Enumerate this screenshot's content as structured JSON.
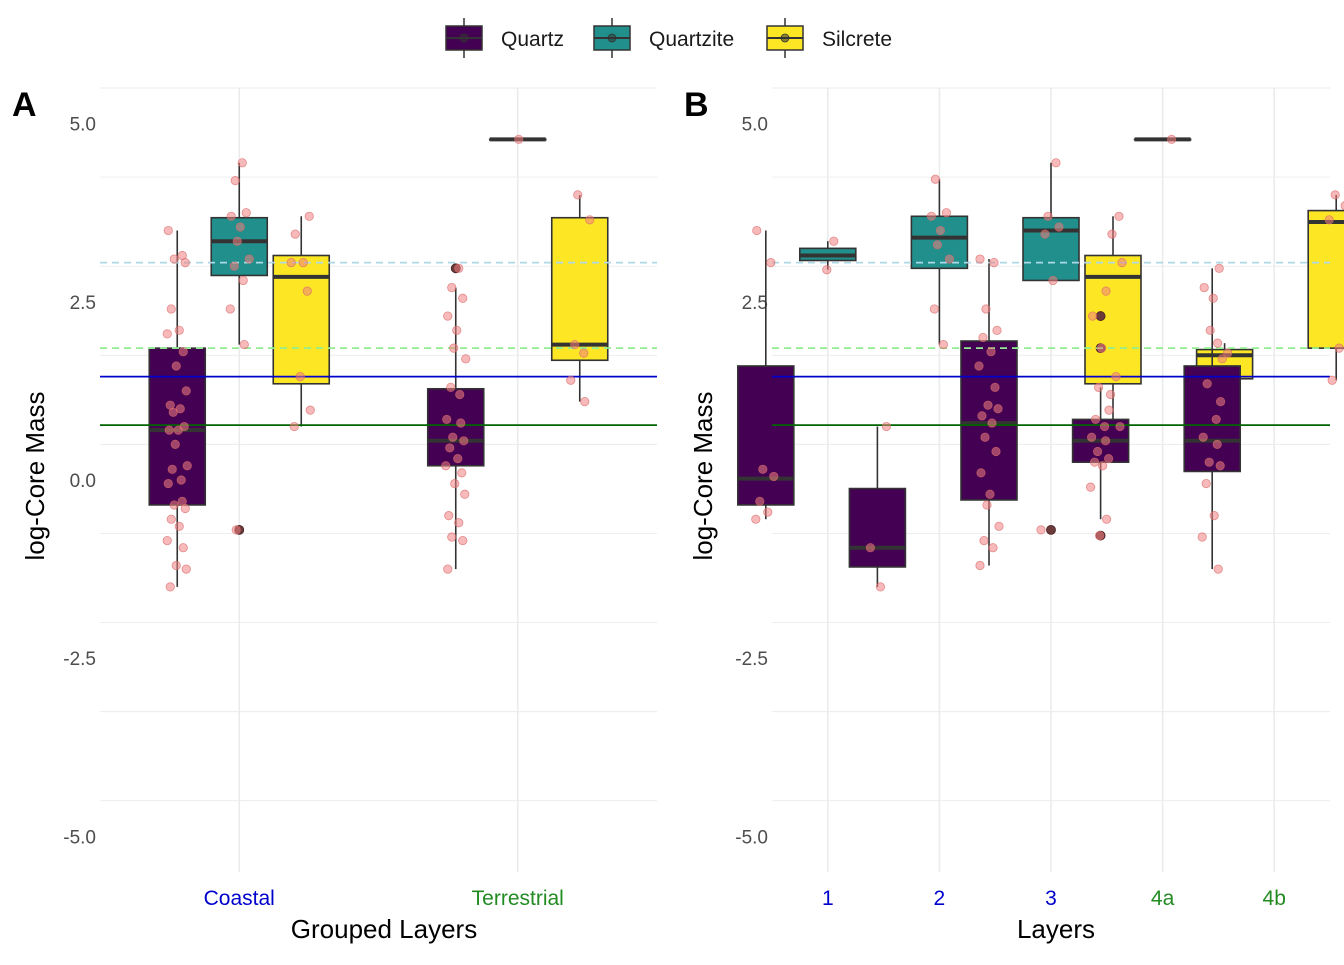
{
  "legend": {
    "position": "top",
    "items": [
      {
        "label": "Quartz",
        "color": "#440154"
      },
      {
        "label": "Quartzite",
        "color": "#21908C"
      },
      {
        "label": "Silcrete",
        "color": "#FDE725"
      }
    ]
  },
  "reference_lines": [
    {
      "y": 3.05,
      "color": "#ADD8E6",
      "style": "dashed"
    },
    {
      "y": 1.85,
      "color": "#90EE90",
      "style": "dashed"
    },
    {
      "y": 1.45,
      "color": "#0000CD",
      "style": "solid"
    },
    {
      "y": 0.77,
      "color": "#006400",
      "style": "solid"
    }
  ],
  "point_color": "#F08080",
  "outlier_color": "#6B3A3A",
  "chart_data": [
    {
      "type": "box",
      "panel_label": "A",
      "xlabel": "Grouped Layers",
      "ylabel": "log-Core Mass",
      "ylim": [
        -5.5,
        5.5
      ],
      "y_ticks": [
        "5.0",
        "2.5",
        "0.0",
        "-2.5",
        "-5.0"
      ],
      "y_tick_values": [
        5.0,
        2.5,
        0.0,
        -2.5,
        -5.0
      ],
      "grid": true,
      "categories": [
        {
          "label": "Coastal",
          "color": "#0000CD"
        },
        {
          "label": "Terrestrial",
          "color": "#228B22"
        }
      ],
      "boxes": [
        {
          "category": 0,
          "series": "Quartz",
          "q1": -0.35,
          "median": 0.7,
          "q3": 1.85,
          "whisker_low": -1.5,
          "whisker_high": 3.5,
          "outliers": [],
          "points": [
            3.5,
            3.15,
            3.1,
            3.05,
            2.4,
            2.1,
            2.05,
            1.8,
            1.6,
            1.25,
            1.05,
            1.0,
            0.95,
            0.75,
            0.7,
            0.7,
            0.5,
            0.2,
            0.15,
            0.0,
            -0.05,
            -0.3,
            -0.35,
            -0.4,
            -0.55,
            -0.65,
            -0.85,
            -0.95,
            -1.2,
            -1.25,
            -1.5
          ]
        },
        {
          "category": 0,
          "series": "Quartzite",
          "q1": 2.87,
          "median": 3.35,
          "q3": 3.68,
          "whisker_low": 1.9,
          "whisker_high": 4.45,
          "outliers": [
            -0.7
          ],
          "points": [
            4.45,
            4.2,
            3.75,
            3.7,
            3.55,
            3.35,
            3.1,
            3.0,
            2.8,
            2.4,
            1.9,
            -0.7
          ]
        },
        {
          "category": 0,
          "series": "Silcrete",
          "q1": 1.35,
          "median": 2.85,
          "q3": 3.15,
          "whisker_low": 0.75,
          "whisker_high": 3.7,
          "outliers": [],
          "points": [
            3.7,
            3.45,
            3.05,
            3.05,
            2.65,
            1.45,
            0.98,
            0.75
          ]
        },
        {
          "category": 1,
          "series": "Quartz",
          "q1": 0.2,
          "median": 0.55,
          "q3": 1.28,
          "whisker_low": -1.25,
          "whisker_high": 2.7,
          "outliers": [
            2.97
          ],
          "points": [
            2.97,
            2.7,
            2.55,
            2.3,
            2.1,
            1.85,
            1.7,
            1.3,
            1.2,
            0.85,
            0.8,
            0.6,
            0.55,
            0.45,
            0.3,
            0.2,
            0.1,
            -0.05,
            -0.2,
            -0.5,
            -0.6,
            -0.8,
            -0.85,
            -1.25
          ]
        },
        {
          "category": 1,
          "series": "Quartzite",
          "q1": 4.78,
          "median": 4.78,
          "q3": 4.78,
          "whisker_low": 4.78,
          "whisker_high": 4.78,
          "outliers": [],
          "points": [
            4.78
          ]
        },
        {
          "category": 1,
          "series": "Silcrete",
          "q1": 1.68,
          "median": 1.9,
          "q3": 3.68,
          "whisker_low": 1.1,
          "whisker_high": 4.0,
          "outliers": [],
          "points": [
            4.0,
            3.65,
            1.9,
            1.78,
            1.4,
            1.1
          ]
        }
      ]
    },
    {
      "type": "box",
      "panel_label": "B",
      "xlabel": "Layers",
      "ylabel": "log-Core Mass",
      "ylim": [
        -5.5,
        5.5
      ],
      "y_ticks": [
        "5.0",
        "2.5",
        "0.0",
        "-2.5",
        "-5.0"
      ],
      "y_tick_values": [
        5.0,
        2.5,
        0.0,
        -2.5,
        -5.0
      ],
      "grid": true,
      "categories": [
        {
          "label": "1",
          "color": "#0000CD"
        },
        {
          "label": "2",
          "color": "#0000CD"
        },
        {
          "label": "3",
          "color": "#0000CD"
        },
        {
          "label": "4a",
          "color": "#228B22"
        },
        {
          "label": "4b",
          "color": "#228B22"
        }
      ],
      "boxes": [
        {
          "category": 0,
          "series": "Quartz",
          "q1": -0.35,
          "median": 0.02,
          "q3": 1.6,
          "whisker_low": -0.55,
          "whisker_high": 3.5,
          "outliers": [],
          "points": [
            3.5,
            3.05,
            0.15,
            0.05,
            -0.3,
            -0.45,
            -0.55
          ]
        },
        {
          "category": 0,
          "series": "Quartzite",
          "q1": 3.08,
          "median": 3.15,
          "q3": 3.25,
          "whisker_low": 2.95,
          "whisker_high": 3.35,
          "outliers": [],
          "points": [
            3.35,
            2.95
          ]
        },
        {
          "category": 1,
          "series": "Quartz",
          "q1": -1.22,
          "median": -0.95,
          "q3": -0.12,
          "whisker_low": -1.5,
          "whisker_high": 0.75,
          "outliers": [],
          "points": [
            0.75,
            -0.95,
            -1.5
          ]
        },
        {
          "category": 1,
          "series": "Quartzite",
          "q1": 2.97,
          "median": 3.4,
          "q3": 3.7,
          "whisker_low": 1.9,
          "whisker_high": 4.22,
          "outliers": [],
          "points": [
            4.22,
            3.75,
            3.7,
            3.5,
            3.3,
            3.1,
            2.4,
            1.9
          ]
        },
        {
          "category": 2,
          "series": "Quartz",
          "q1": -0.28,
          "median": 0.8,
          "q3": 1.95,
          "whisker_low": -1.2,
          "whisker_high": 3.1,
          "outliers": [],
          "points": [
            3.1,
            3.05,
            2.4,
            2.1,
            2.0,
            1.8,
            1.6,
            1.3,
            1.05,
            1.0,
            0.9,
            0.8,
            0.6,
            0.4,
            0.1,
            -0.2,
            -0.35,
            -0.65,
            -0.85,
            -0.95,
            -1.2
          ]
        },
        {
          "category": 2,
          "series": "Quartzite",
          "q1": 2.8,
          "median": 3.5,
          "q3": 3.68,
          "whisker_low": 2.8,
          "whisker_high": 4.45,
          "outliers": [
            -0.7
          ],
          "points": [
            4.45,
            3.7,
            3.55,
            3.45,
            2.8,
            -0.7
          ]
        },
        {
          "category": 2,
          "series": "Silcrete",
          "q1": 1.35,
          "median": 2.85,
          "q3": 3.15,
          "whisker_low": 0.75,
          "whisker_high": 3.7,
          "outliers": [],
          "points": [
            3.7,
            3.45,
            3.05,
            2.65,
            1.45,
            0.98,
            0.75
          ]
        },
        {
          "category": 3,
          "series": "Quartz",
          "q1": 0.25,
          "median": 0.55,
          "q3": 0.85,
          "whisker_low": -0.55,
          "whisker_high": 1.3,
          "outliers": [
            2.3,
            1.85,
            -0.78
          ],
          "points": [
            2.3,
            1.85,
            1.3,
            1.2,
            0.85,
            0.75,
            0.6,
            0.55,
            0.4,
            0.3,
            0.25,
            0.2,
            -0.1,
            -0.55,
            -0.78
          ]
        },
        {
          "category": 3,
          "series": "Quartzite",
          "q1": 4.78,
          "median": 4.78,
          "q3": 4.78,
          "whisker_low": 4.78,
          "whisker_high": 4.78,
          "outliers": [],
          "points": [
            4.78
          ]
        },
        {
          "category": 3,
          "series": "Silcrete",
          "q1": 1.42,
          "median": 1.75,
          "q3": 1.83,
          "whisker_low": 1.1,
          "whisker_high": 1.92,
          "outliers": [],
          "points": [
            1.92,
            1.78,
            1.1
          ]
        },
        {
          "category": 4,
          "series": "Quartz",
          "q1": 0.12,
          "median": 0.55,
          "q3": 1.6,
          "whisker_low": -1.25,
          "whisker_high": 2.97,
          "outliers": [],
          "points": [
            2.97,
            2.7,
            2.55,
            2.1,
            1.7,
            1.35,
            0.85,
            0.6,
            0.5,
            0.25,
            0.2,
            -0.05,
            -0.5,
            -0.8,
            -1.25
          ]
        },
        {
          "category": 4,
          "series": "Silcrete",
          "q1": 1.85,
          "median": 3.62,
          "q3": 3.78,
          "whisker_low": 1.4,
          "whisker_high": 4.0,
          "outliers": [],
          "points": [
            4.0,
            3.85,
            3.65,
            1.85,
            1.4
          ]
        }
      ]
    }
  ]
}
